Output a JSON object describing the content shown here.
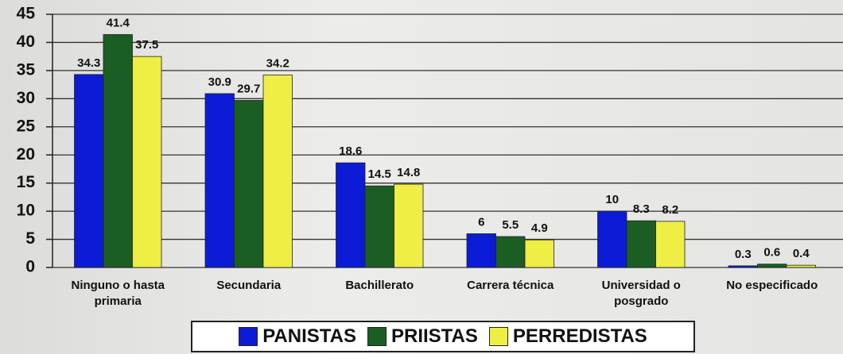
{
  "chart_data": {
    "type": "bar",
    "categories": [
      "Ninguno o hasta primaria",
      "Secundaria",
      "Bachillerato",
      "Carrera técnica",
      "Universidad o posgrado",
      "No especificado"
    ],
    "series": [
      {
        "name": "PANISTAS",
        "color": "#0b1bd6",
        "values": [
          34.3,
          30.9,
          18.6,
          6,
          10,
          0.3
        ]
      },
      {
        "name": "PRIISTAS",
        "color": "#1b5e24",
        "values": [
          41.4,
          29.7,
          14.5,
          5.5,
          8.3,
          0.6
        ]
      },
      {
        "name": "PERREDISTAS",
        "color": "#eeee44",
        "values": [
          37.5,
          34.2,
          14.8,
          4.9,
          8.2,
          0.4
        ]
      }
    ],
    "ylim": [
      0,
      45
    ],
    "yticks": [
      0,
      5,
      10,
      15,
      20,
      25,
      30,
      35,
      40,
      45
    ],
    "grid": true,
    "legend": "bottom"
  }
}
